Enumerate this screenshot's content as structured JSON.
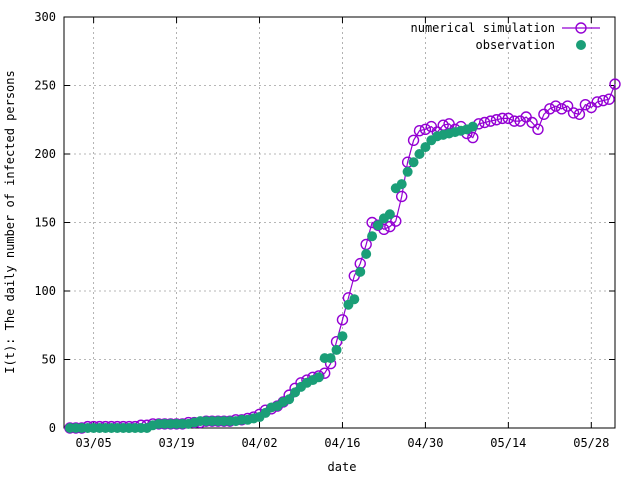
{
  "chart_data": {
    "type": "scatter",
    "xlabel": "date",
    "ylabel": "I(t): The daily number of infected persons",
    "xlim": [
      "2020-02-29",
      "2020-06-01"
    ],
    "ylim": [
      0,
      300
    ],
    "grid": true,
    "legend_position": "top-right",
    "x_ticks": [
      "03/05",
      "03/19",
      "04/02",
      "04/16",
      "04/30",
      "05/14",
      "05/28"
    ],
    "y_ticks": [
      0,
      50,
      100,
      150,
      200,
      250,
      300
    ],
    "series": [
      {
        "name": "numerical simulation",
        "style": "line-with-open-circles",
        "color": "#9400d3",
        "points": [
          [
            "2020-03-01",
            0
          ],
          [
            "2020-03-02",
            0
          ],
          [
            "2020-03-03",
            0
          ],
          [
            "2020-03-04",
            1
          ],
          [
            "2020-03-05",
            1
          ],
          [
            "2020-03-06",
            1
          ],
          [
            "2020-03-07",
            1
          ],
          [
            "2020-03-08",
            1
          ],
          [
            "2020-03-09",
            1
          ],
          [
            "2020-03-10",
            1
          ],
          [
            "2020-03-11",
            1
          ],
          [
            "2020-03-12",
            1
          ],
          [
            "2020-03-13",
            2
          ],
          [
            "2020-03-14",
            2
          ],
          [
            "2020-03-15",
            3
          ],
          [
            "2020-03-16",
            3
          ],
          [
            "2020-03-17",
            3
          ],
          [
            "2020-03-18",
            3
          ],
          [
            "2020-03-19",
            3
          ],
          [
            "2020-03-20",
            3
          ],
          [
            "2020-03-21",
            4
          ],
          [
            "2020-03-22",
            4
          ],
          [
            "2020-03-23",
            4
          ],
          [
            "2020-03-24",
            5
          ],
          [
            "2020-03-25",
            5
          ],
          [
            "2020-03-26",
            5
          ],
          [
            "2020-03-27",
            5
          ],
          [
            "2020-03-28",
            5
          ],
          [
            "2020-03-29",
            6
          ],
          [
            "2020-03-30",
            6
          ],
          [
            "2020-03-31",
            7
          ],
          [
            "2020-04-01",
            8
          ],
          [
            "2020-04-02",
            10
          ],
          [
            "2020-04-03",
            13
          ],
          [
            "2020-04-04",
            14
          ],
          [
            "2020-04-05",
            16
          ],
          [
            "2020-04-06",
            19
          ],
          [
            "2020-04-07",
            24
          ],
          [
            "2020-04-08",
            29
          ],
          [
            "2020-04-09",
            33
          ],
          [
            "2020-04-10",
            35
          ],
          [
            "2020-04-11",
            37
          ],
          [
            "2020-04-12",
            38
          ],
          [
            "2020-04-13",
            40
          ],
          [
            "2020-04-14",
            47
          ],
          [
            "2020-04-15",
            63
          ],
          [
            "2020-04-16",
            79
          ],
          [
            "2020-04-17",
            95
          ],
          [
            "2020-04-18",
            111
          ],
          [
            "2020-04-19",
            120
          ],
          [
            "2020-04-20",
            134
          ],
          [
            "2020-04-21",
            150
          ],
          [
            "2020-04-22",
            148
          ],
          [
            "2020-04-23",
            145
          ],
          [
            "2020-04-24",
            147
          ],
          [
            "2020-04-25",
            151
          ],
          [
            "2020-04-26",
            169
          ],
          [
            "2020-04-27",
            194
          ],
          [
            "2020-04-28",
            210
          ],
          [
            "2020-04-29",
            217
          ],
          [
            "2020-04-30",
            218
          ],
          [
            "2020-05-01",
            220
          ],
          [
            "2020-05-02",
            216
          ],
          [
            "2020-05-03",
            221
          ],
          [
            "2020-05-04",
            222
          ],
          [
            "2020-05-05",
            218
          ],
          [
            "2020-05-06",
            220
          ],
          [
            "2020-05-07",
            215
          ],
          [
            "2020-05-08",
            212
          ],
          [
            "2020-05-09",
            222
          ],
          [
            "2020-05-10",
            223
          ],
          [
            "2020-05-11",
            224
          ],
          [
            "2020-05-12",
            225
          ],
          [
            "2020-05-13",
            226
          ],
          [
            "2020-05-14",
            226
          ],
          [
            "2020-05-15",
            224
          ],
          [
            "2020-05-16",
            224
          ],
          [
            "2020-05-17",
            227
          ],
          [
            "2020-05-18",
            223
          ],
          [
            "2020-05-19",
            218
          ],
          [
            "2020-05-20",
            229
          ],
          [
            "2020-05-21",
            233
          ],
          [
            "2020-05-22",
            235
          ],
          [
            "2020-05-23",
            233
          ],
          [
            "2020-05-24",
            235
          ],
          [
            "2020-05-25",
            230
          ],
          [
            "2020-05-26",
            229
          ],
          [
            "2020-05-27",
            236
          ],
          [
            "2020-05-28",
            234
          ],
          [
            "2020-05-29",
            238
          ],
          [
            "2020-05-30",
            239
          ],
          [
            "2020-05-31",
            240
          ],
          [
            "2020-06-01",
            251
          ]
        ]
      },
      {
        "name": "observation",
        "style": "filled-circles",
        "color": "#1a9e77",
        "points": [
          [
            "2020-03-01",
            0
          ],
          [
            "2020-03-02",
            0
          ],
          [
            "2020-03-03",
            0
          ],
          [
            "2020-03-04",
            0
          ],
          [
            "2020-03-05",
            0
          ],
          [
            "2020-03-06",
            0
          ],
          [
            "2020-03-07",
            0
          ],
          [
            "2020-03-08",
            0
          ],
          [
            "2020-03-09",
            0
          ],
          [
            "2020-03-10",
            0
          ],
          [
            "2020-03-11",
            0
          ],
          [
            "2020-03-12",
            0
          ],
          [
            "2020-03-13",
            0
          ],
          [
            "2020-03-14",
            0
          ],
          [
            "2020-03-15",
            2
          ],
          [
            "2020-03-16",
            3
          ],
          [
            "2020-03-17",
            3
          ],
          [
            "2020-03-18",
            3
          ],
          [
            "2020-03-19",
            3
          ],
          [
            "2020-03-20",
            3
          ],
          [
            "2020-03-21",
            3
          ],
          [
            "2020-03-22",
            4
          ],
          [
            "2020-03-23",
            5
          ],
          [
            "2020-03-24",
            5
          ],
          [
            "2020-03-25",
            5
          ],
          [
            "2020-03-26",
            5
          ],
          [
            "2020-03-27",
            5
          ],
          [
            "2020-03-28",
            5
          ],
          [
            "2020-03-29",
            5
          ],
          [
            "2020-03-30",
            6
          ],
          [
            "2020-03-31",
            6
          ],
          [
            "2020-04-01",
            7
          ],
          [
            "2020-04-02",
            8
          ],
          [
            "2020-04-03",
            11
          ],
          [
            "2020-04-04",
            15
          ],
          [
            "2020-04-05",
            16
          ],
          [
            "2020-04-06",
            19
          ],
          [
            "2020-04-07",
            21
          ],
          [
            "2020-04-08",
            26
          ],
          [
            "2020-04-09",
            30
          ],
          [
            "2020-04-10",
            33
          ],
          [
            "2020-04-11",
            35
          ],
          [
            "2020-04-12",
            37
          ],
          [
            "2020-04-13",
            51
          ],
          [
            "2020-04-14",
            51
          ],
          [
            "2020-04-15",
            57
          ],
          [
            "2020-04-16",
            67
          ],
          [
            "2020-04-17",
            90
          ],
          [
            "2020-04-18",
            94
          ],
          [
            "2020-04-19",
            114
          ],
          [
            "2020-04-20",
            127
          ],
          [
            "2020-04-21",
            140
          ],
          [
            "2020-04-22",
            148
          ],
          [
            "2020-04-23",
            153
          ],
          [
            "2020-04-24",
            156
          ],
          [
            "2020-04-25",
            175
          ],
          [
            "2020-04-26",
            178
          ],
          [
            "2020-04-27",
            187
          ],
          [
            "2020-04-28",
            194
          ],
          [
            "2020-04-29",
            200
          ],
          [
            "2020-04-30",
            205
          ],
          [
            "2020-05-01",
            210
          ],
          [
            "2020-05-02",
            213
          ],
          [
            "2020-05-03",
            214
          ],
          [
            "2020-05-04",
            215
          ],
          [
            "2020-05-05",
            216
          ],
          [
            "2020-05-06",
            217
          ],
          [
            "2020-05-07",
            218
          ],
          [
            "2020-05-08",
            220
          ]
        ]
      }
    ]
  }
}
